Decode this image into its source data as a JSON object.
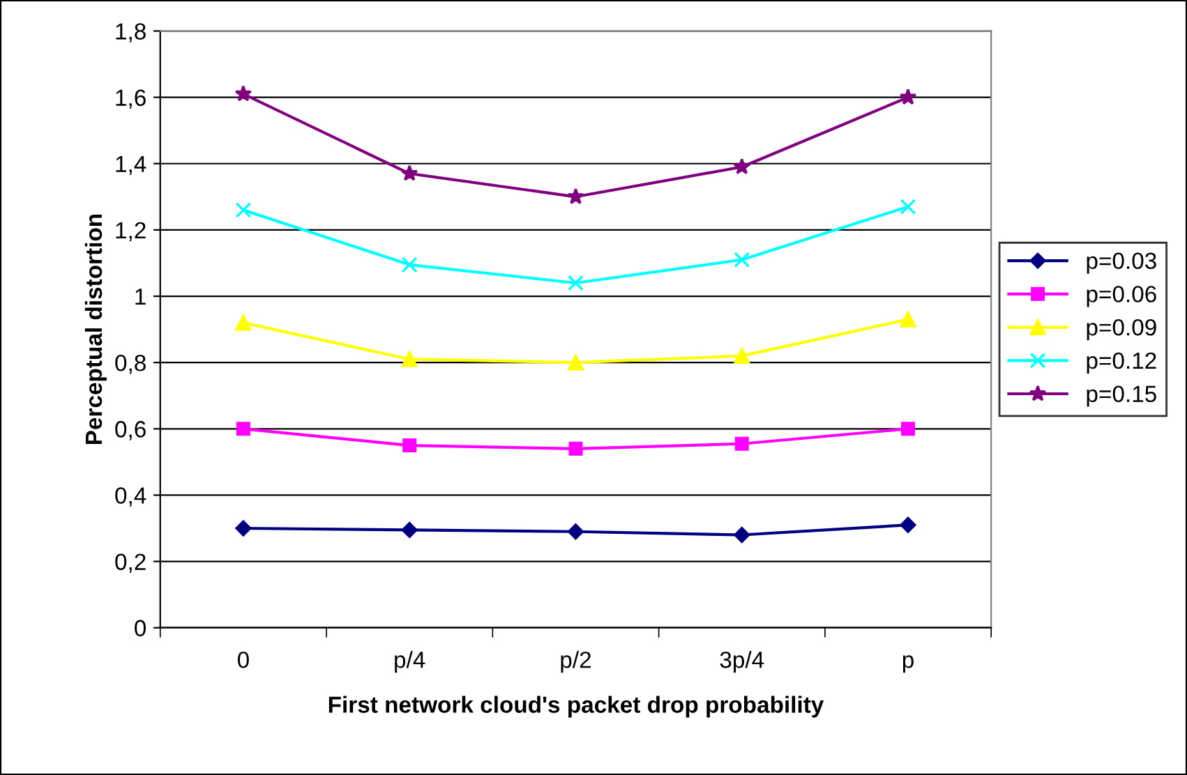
{
  "chart_data": {
    "type": "line",
    "xlabel": "First network cloud's packet drop probability",
    "ylabel": "Perceptual distortion",
    "categories": [
      "0",
      "p/4",
      "p/2",
      "3p/4",
      "p"
    ],
    "series": [
      {
        "name": "p=0.03",
        "color": "#000080",
        "marker": "diamond",
        "values": [
          0.3,
          0.295,
          0.29,
          0.28,
          0.31
        ]
      },
      {
        "name": "p=0.06",
        "color": "#ff00ff",
        "marker": "square",
        "values": [
          0.6,
          0.55,
          0.54,
          0.555,
          0.6
        ]
      },
      {
        "name": "p=0.09",
        "color": "#ffff00",
        "marker": "triangle",
        "values": [
          0.92,
          0.81,
          0.8,
          0.82,
          0.93
        ]
      },
      {
        "name": "p=0.12",
        "color": "#00ffff",
        "marker": "cross",
        "values": [
          1.26,
          1.095,
          1.04,
          1.11,
          1.27
        ]
      },
      {
        "name": "p=0.15",
        "color": "#800080",
        "marker": "star",
        "values": [
          1.61,
          1.37,
          1.3,
          1.39,
          1.6
        ]
      }
    ],
    "ylim": [
      0,
      1.8
    ],
    "yticks": [
      0,
      {
        "value": 0.2,
        "label": "0,2"
      },
      {
        "value": 0.4,
        "label": "0,4"
      },
      {
        "value": 0.6,
        "label": "0,6"
      },
      {
        "value": 0.8,
        "label": "0,8"
      },
      1,
      {
        "value": 1.2,
        "label": "1,2"
      },
      {
        "value": 1.4,
        "label": "1,4"
      },
      {
        "value": 1.6,
        "label": "1,6"
      },
      {
        "value": 1.8,
        "label": "1,8"
      }
    ],
    "grid": "y",
    "legend": "right",
    "line_style": "solid"
  }
}
